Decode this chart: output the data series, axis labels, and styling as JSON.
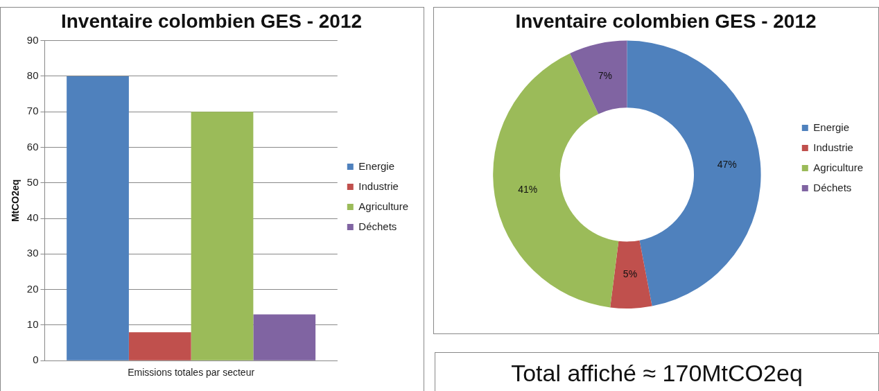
{
  "chart_data": [
    {
      "type": "bar",
      "title": "Inventaire colombien GES - 2012",
      "ylabel": "MtCO2eq",
      "categories": [
        "Emissions totales par secteur"
      ],
      "series": [
        {
          "name": "Energie",
          "color": "#4f81bd",
          "values": [
            80
          ]
        },
        {
          "name": "Industrie",
          "color": "#c0504d",
          "values": [
            8
          ]
        },
        {
          "name": "Agriculture",
          "color": "#9bbb59",
          "values": [
            70
          ]
        },
        {
          "name": "Déchets",
          "color": "#8064a2",
          "values": [
            13
          ]
        }
      ],
      "ylim": [
        0,
        90
      ],
      "yticks": [
        0,
        10,
        20,
        30,
        40,
        50,
        60,
        70,
        80,
        90
      ],
      "grid": "y",
      "legend": "right"
    },
    {
      "type": "donut",
      "title": "Inventaire colombien GES - 2012",
      "categories": [
        "Energie",
        "Industrie",
        "Agriculture",
        "Déchets"
      ],
      "values": [
        47,
        5,
        41,
        7
      ],
      "colors": [
        "#4f81bd",
        "#c0504d",
        "#9bbb59",
        "#8064a2"
      ],
      "value_labels": [
        "47%",
        "5%",
        "41%",
        "7%"
      ],
      "legend": "right"
    },
    {
      "type": "other",
      "title": "Total affiché ≈ 170MtCO2eq"
    }
  ]
}
